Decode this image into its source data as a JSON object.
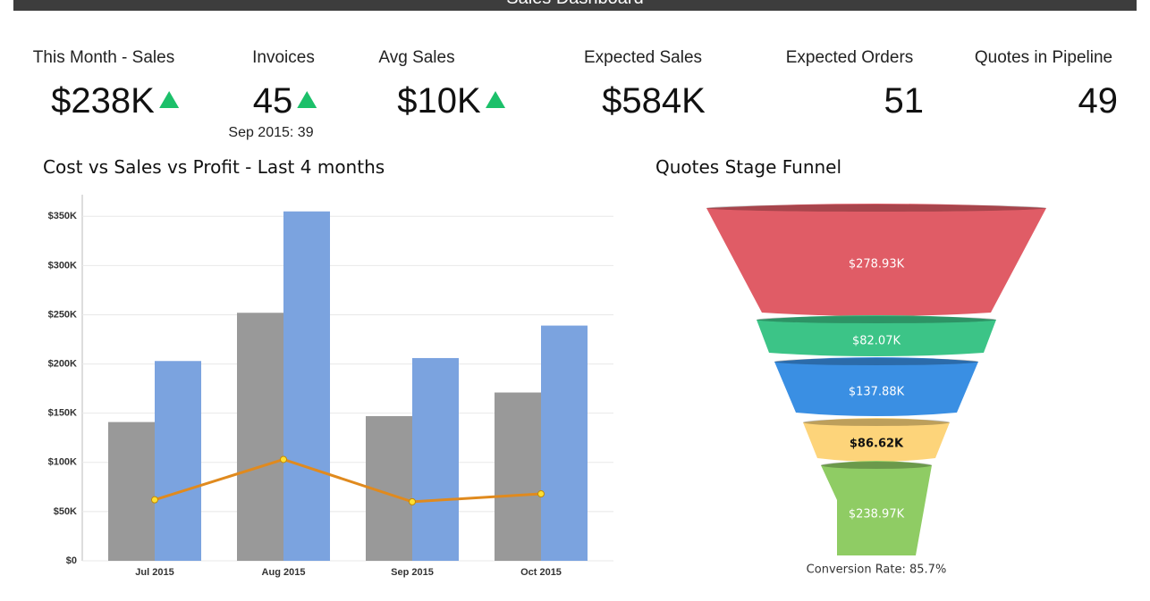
{
  "header": {
    "title": "Sales Dashboard"
  },
  "kpis": [
    {
      "label": "This Month - Sales",
      "value": "$238K",
      "trend": "up"
    },
    {
      "label": "Invoices",
      "value": "45",
      "trend": "up",
      "note": "Sep 2015: 39"
    },
    {
      "label": "Avg Sales",
      "value": "$10K",
      "trend": "up"
    },
    {
      "label": "Expected Sales",
      "value": "$584K"
    },
    {
      "label": "Expected Orders",
      "value": "51"
    },
    {
      "label": "Quotes in Pipeline",
      "value": "49"
    }
  ],
  "chart_data": [
    {
      "type": "bar",
      "title": "Cost vs Sales vs Profit - Last 4 months",
      "categories": [
        "Jul 2015",
        "Aug 2015",
        "Sep 2015",
        "Oct 2015"
      ],
      "series": [
        {
          "color": "#999999",
          "values": [
            141000,
            252000,
            147000,
            171000
          ]
        },
        {
          "color": "#7ba3df",
          "values": [
            203000,
            355000,
            206000,
            239000
          ]
        },
        {
          "type": "line",
          "color": "#e08a1e",
          "values": [
            62000,
            103000,
            60000,
            68000
          ]
        }
      ],
      "ylim": [
        0,
        372000
      ],
      "yticks": [
        {
          "value": 0,
          "label": "$0"
        },
        {
          "value": 50000,
          "label": "$50K"
        },
        {
          "value": 100000,
          "label": "$100K"
        },
        {
          "value": 150000,
          "label": "$150K"
        },
        {
          "value": 200000,
          "label": "$200K"
        },
        {
          "value": 250000,
          "label": "$250K"
        },
        {
          "value": 300000,
          "label": "$300K"
        },
        {
          "value": 350000,
          "label": "$350K"
        }
      ],
      "grid": true
    },
    {
      "type": "funnel",
      "title": "Quotes Stage Funnel",
      "values": [
        278930,
        82070,
        137880,
        86620,
        238970
      ],
      "value_labels": [
        "$278.93K",
        "$82.07K",
        "$137.88K",
        "$86.62K",
        "$238.97K"
      ],
      "colors": [
        "#e05c66",
        "#3cc487",
        "#3a8fe3",
        "#fdd47a",
        "#8fcc64"
      ],
      "annotation": "Conversion Rate: 85.7%"
    }
  ]
}
